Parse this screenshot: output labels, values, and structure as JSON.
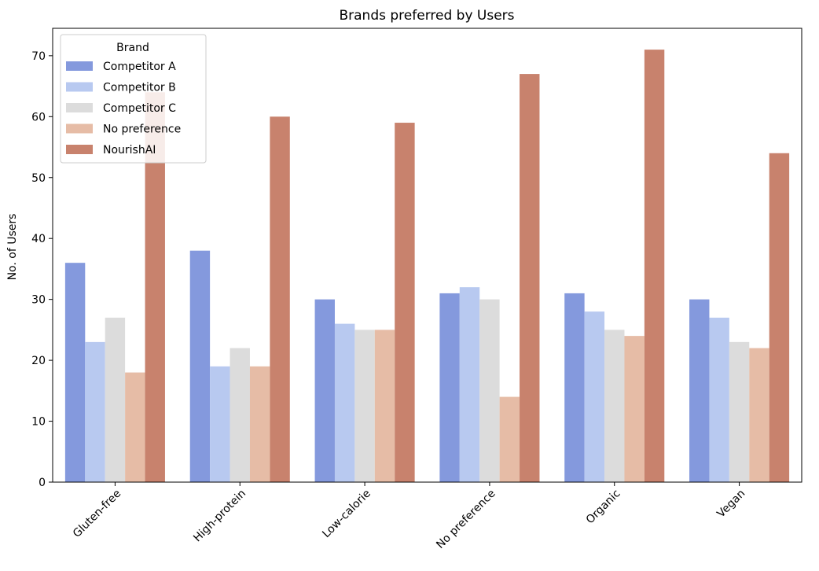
{
  "chart_data": {
    "type": "bar",
    "title": "Brands preferred by Users",
    "xlabel": "",
    "ylabel": "No. of Users",
    "categories": [
      "Gluten-free",
      "High-protein",
      "Low-calorie",
      "No preference",
      "Organic",
      "Vegan"
    ],
    "series": [
      {
        "name": "Competitor A",
        "color": "#8499dd",
        "values": [
          36,
          38,
          30,
          31,
          31,
          30
        ]
      },
      {
        "name": "Competitor B",
        "color": "#b8c9f0",
        "values": [
          23,
          19,
          26,
          32,
          28,
          27
        ]
      },
      {
        "name": "Competitor C",
        "color": "#dcdcdc",
        "values": [
          27,
          22,
          25,
          30,
          25,
          23
        ]
      },
      {
        "name": "No preference",
        "color": "#e6bca6",
        "values": [
          18,
          19,
          25,
          14,
          24,
          22
        ]
      },
      {
        "name": "NourishAI",
        "color": "#c8826d",
        "values": [
          64,
          60,
          59,
          67,
          71,
          54
        ]
      }
    ],
    "ylim": [
      0,
      74.5
    ],
    "yticks": [
      0,
      10,
      20,
      30,
      40,
      50,
      60,
      70
    ],
    "legend": {
      "title": "Brand",
      "position": "top-left"
    },
    "grid": false
  }
}
